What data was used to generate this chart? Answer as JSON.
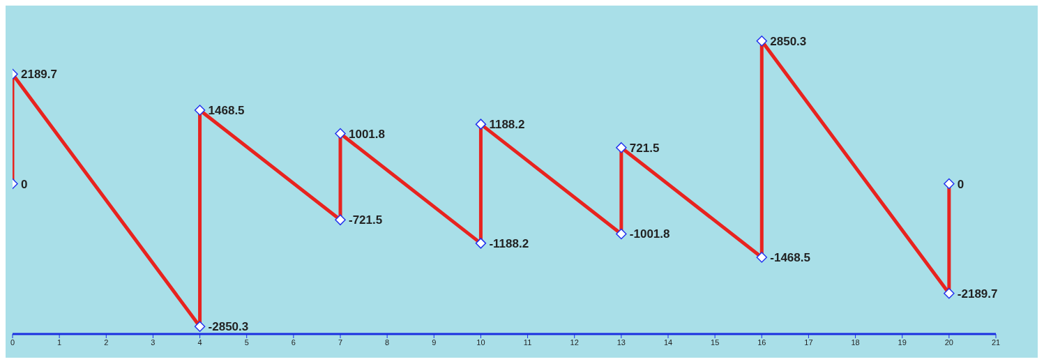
{
  "chart_data": {
    "type": "line",
    "x": [
      0,
      0,
      4,
      4,
      7,
      7,
      10,
      10,
      13,
      13,
      16,
      16,
      20,
      20
    ],
    "series": [
      {
        "color": "#e8231f",
        "values": [
          0,
          2189.7,
          -2850.3,
          1468.5,
          -721.5,
          1001.8,
          -1188.2,
          1188.2,
          -1001.8,
          721.5,
          -1468.5,
          2850.3,
          -2189.7,
          0
        ]
      }
    ],
    "xlim": [
      0,
      21
    ],
    "xticks": [
      0,
      1,
      2,
      3,
      4,
      5,
      6,
      7,
      8,
      9,
      10,
      11,
      12,
      13,
      14,
      15,
      16,
      17,
      18,
      19,
      20,
      21
    ],
    "tick_labels": "x",
    "data_labels": true,
    "marker": "diamond",
    "line_style": "solid"
  }
}
